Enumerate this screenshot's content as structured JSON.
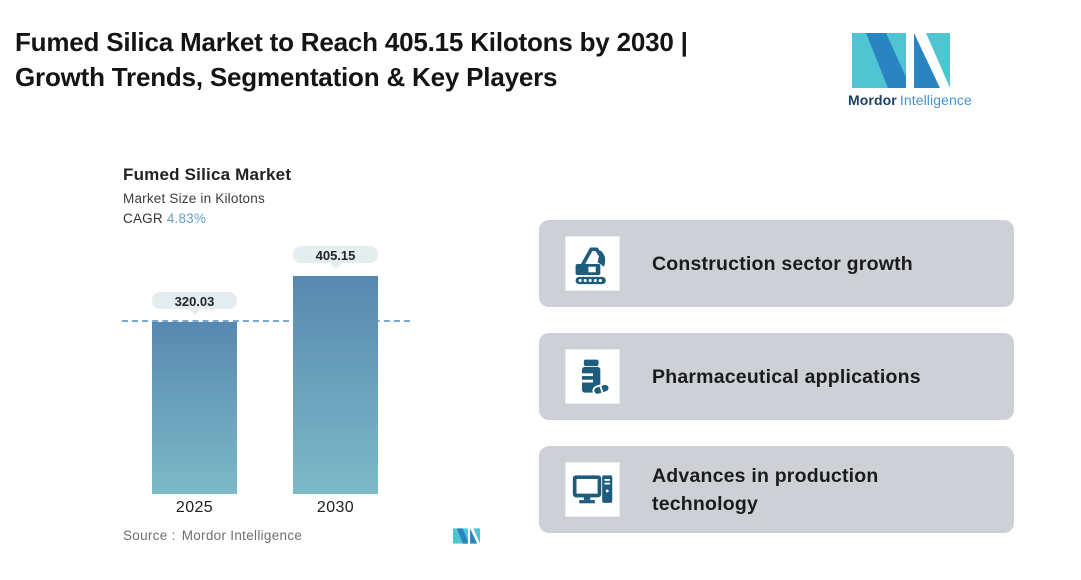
{
  "page": {
    "title_line1": "Fumed Silica Market to Reach 405.15 Kilotons by 2030 |",
    "title_line2": "Growth Trends, Segmentation & Key Players"
  },
  "brand": {
    "name_bold": "Mordor",
    "name_light": "Intelligence",
    "logo_teal": "#4ec5d0",
    "logo_blue": "#2b84c2"
  },
  "chart": {
    "title": "Fumed Silica Market",
    "subtitle": "Market Size in Kilotons",
    "cagr_label": "CAGR",
    "cagr_value": "4.83%",
    "source_label": "Source :",
    "source_value": "Mordor Intelligence"
  },
  "chart_data": {
    "type": "bar",
    "title": "Fumed Silica Market",
    "ylabel": "Market Size in Kilotons",
    "categories": [
      "2025",
      "2030"
    ],
    "values": [
      320.03,
      405.15
    ],
    "value_labels": [
      "320.03",
      "405.15"
    ],
    "cagr_pct": 4.83,
    "reference_line_value": 320.03,
    "ylim": [
      0,
      420
    ],
    "grid": false,
    "legend": false,
    "bar_color_top": "#5888b0",
    "bar_color_bottom": "#7cbac7",
    "reference_line_color": "#79a9d1",
    "value_pill_bg": "#e4edf0"
  },
  "highlights": {
    "card_bg": "#cdd1d6",
    "icon_color": "#1e5c7e",
    "items": [
      {
        "icon": "excavator-icon",
        "label": "Construction sector growth"
      },
      {
        "icon": "pill-bottle-icon",
        "label": "Pharmaceutical applications"
      },
      {
        "icon": "desktop-computer-icon",
        "label": "Advances in production technology"
      }
    ]
  }
}
